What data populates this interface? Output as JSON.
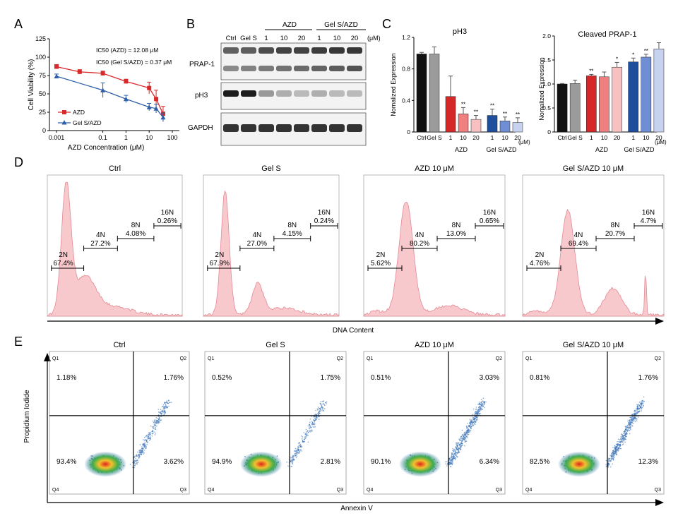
{
  "colors": {
    "azd": "#d9292a",
    "gel_azd": "#2f5fa8",
    "ctrl_bar": "#111111",
    "gels_bar": "#9b9b9b",
    "azd_bars": [
      "#d62728",
      "#f08080",
      "#f7c1c1"
    ],
    "gel_azd_bars": [
      "#1f4e9c",
      "#6f8ed3",
      "#c7d3ee"
    ],
    "flow_fill": "#f7c8cc",
    "flow_stroke": "#e58a93"
  },
  "panel_labels": {
    "A": "A",
    "B": "B",
    "C": "C",
    "D": "D",
    "E": "E"
  },
  "chart_data": [
    {
      "id": "A",
      "type": "line",
      "title": "",
      "xlabel": "AZD Concentration (μM)",
      "ylabel": "Cell Viability (%)",
      "xscale": "log",
      "x_ticks": [
        "0.001",
        "0.1",
        "1",
        "10",
        "100"
      ],
      "y_ticks": [
        "0",
        "25",
        "50",
        "75",
        "100",
        "125"
      ],
      "ylim": [
        0,
        125
      ],
      "annotations": [
        "IC50 (AZD) = 12.08 μM",
        "IC50 (Gel S/AZD) = 0.37 μM"
      ],
      "legend": [
        "AZD",
        "Gel S/AZD"
      ],
      "series": [
        {
          "name": "AZD",
          "marker": "square",
          "x": [
            0.001,
            0.01,
            0.1,
            1,
            10,
            20,
            40
          ],
          "y": [
            87,
            80,
            78,
            67,
            58,
            43,
            23
          ],
          "err": [
            3,
            3,
            3,
            3,
            8,
            12,
            10
          ]
        },
        {
          "name": "Gel S/AZD",
          "marker": "triangle",
          "x": [
            0.001,
            0.1,
            1,
            10,
            20,
            40
          ],
          "y": [
            74,
            55,
            43,
            32,
            30,
            18
          ],
          "err": [
            3,
            10,
            5,
            5,
            6,
            6
          ]
        }
      ]
    },
    {
      "id": "C-pH3",
      "type": "bar",
      "title": "pH3",
      "ylabel": "Nomalized Expression",
      "ylim": [
        0,
        1.2
      ],
      "y_ticks": [
        "0",
        "0.4",
        "0.8",
        "1.2"
      ],
      "categories": [
        "Ctrl",
        "Gel S",
        "1",
        "10",
        "20",
        "1",
        "10",
        "20"
      ],
      "group_labels": [
        "AZD",
        "Gel S/AZD"
      ],
      "unit_label": "(μM)",
      "values": [
        0.99,
        0.99,
        0.45,
        0.23,
        0.16,
        0.21,
        0.14,
        0.12
      ],
      "errors": [
        0.02,
        0.09,
        0.26,
        0.08,
        0.05,
        0.08,
        0.05,
        0.06
      ],
      "significance": [
        "",
        "",
        "",
        "**",
        "**",
        "**",
        "**",
        "**"
      ]
    },
    {
      "id": "C-PRAP",
      "type": "bar",
      "title": "Cleaved PRAP-1",
      "ylabel": "Nomalized Expression",
      "ylim": [
        0,
        2.0
      ],
      "y_ticks": [
        "0",
        "0.5",
        "1.0",
        "1.5",
        "2.0"
      ],
      "categories": [
        "Ctrl",
        "Gel S",
        "1",
        "10",
        "20",
        "1",
        "10",
        "20"
      ],
      "group_labels": [
        "AZD",
        "Gel S/AZD"
      ],
      "unit_label": "(μM)",
      "values": [
        1.0,
        1.01,
        1.17,
        1.15,
        1.35,
        1.46,
        1.56,
        1.73
      ],
      "errors": [
        0.01,
        0.07,
        0.03,
        0.1,
        0.1,
        0.08,
        0.06,
        0.13
      ],
      "significance": [
        "",
        "",
        "**",
        "",
        "*",
        "*",
        "**",
        ""
      ]
    }
  ],
  "panel_b": {
    "conditions": [
      "Ctrl",
      "Gel S",
      "1",
      "10",
      "20",
      "1",
      "10",
      "20"
    ],
    "group_labels": [
      "AZD",
      "Gel S/AZD"
    ],
    "unit_label": "(μM)",
    "rows": [
      "PRAP-1",
      "pH3",
      "GAPDH"
    ]
  },
  "panel_d": {
    "x_axis_label": "DNA Content",
    "plots": [
      {
        "title": "Ctrl",
        "gates": [
          {
            "name": "2N",
            "pct": "67.4%"
          },
          {
            "name": "4N",
            "pct": "27.2%"
          },
          {
            "name": "8N",
            "pct": "4.08%"
          },
          {
            "name": "16N",
            "pct": "0.26%"
          }
        ]
      },
      {
        "title": "Gel S",
        "gates": [
          {
            "name": "2N",
            "pct": "67.9%"
          },
          {
            "name": "4N",
            "pct": "27.0%"
          },
          {
            "name": "8N",
            "pct": "4.15%"
          },
          {
            "name": "16N",
            "pct": "0.24%"
          }
        ]
      },
      {
        "title": "AZD 10 μM",
        "gates": [
          {
            "name": "2N",
            "pct": "5.62%"
          },
          {
            "name": "4N",
            "pct": "80.2%"
          },
          {
            "name": "8N",
            "pct": "13.0%"
          },
          {
            "name": "16N",
            "pct": "0.65%"
          }
        ]
      },
      {
        "title": "Gel S/AZD 10 μM",
        "gates": [
          {
            "name": "2N",
            "pct": "4.76%"
          },
          {
            "name": "4N",
            "pct": "69.4%"
          },
          {
            "name": "8N",
            "pct": "20.7%"
          },
          {
            "name": "16N",
            "pct": "4.7%"
          }
        ]
      }
    ]
  },
  "panel_e": {
    "x_axis_label": "Annexin V",
    "y_axis_label": "Propidium Iodide",
    "quadrant_names": [
      "Q1",
      "Q2",
      "Q4",
      "Q3"
    ],
    "plots": [
      {
        "title": "Ctrl",
        "q1": "1.18%",
        "q2": "1.76%",
        "q4": "93.4%",
        "q3": "3.62%"
      },
      {
        "title": "Gel S",
        "q1": "0.52%",
        "q2": "1.75%",
        "q4": "94.9%",
        "q3": "2.81%"
      },
      {
        "title": "AZD 10 μM",
        "q1": "0.51%",
        "q2": "3.03%",
        "q4": "90.1%",
        "q3": "6.34%"
      },
      {
        "title": "Gel S/AZD 10 μM",
        "q1": "0.81%",
        "q2": "1.76%",
        "q4": "82.5%",
        "q3": "12.3%"
      }
    ]
  }
}
